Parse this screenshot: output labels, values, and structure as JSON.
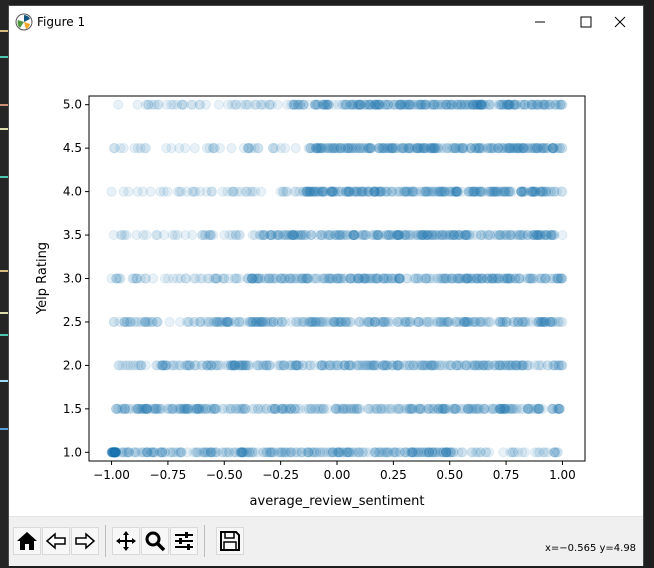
{
  "window": {
    "title": "Figure 1"
  },
  "toolbar": {
    "buttons": [
      "home-icon",
      "back-icon",
      "forward-icon",
      "pan-icon",
      "zoom-icon",
      "configure-subplots-icon",
      "save-icon"
    ],
    "coords_text": "x=−0.565 y=4.98"
  },
  "colors": {
    "marker": "#1f77b4",
    "marker_alpha": 0.1,
    "background": "#ffffff",
    "toolbar": "#f0f0f0"
  },
  "chart_data": {
    "type": "scatter",
    "title": "",
    "xlabel": "average_review_sentiment",
    "ylabel": "Yelp Rating",
    "xlim": [
      -1.1,
      1.1
    ],
    "ylim": [
      0.9,
      5.1
    ],
    "xticks": [
      -1.0,
      -0.75,
      -0.5,
      -0.25,
      0.0,
      0.25,
      0.5,
      0.75,
      1.0
    ],
    "xtick_labels": [
      "−1.00",
      "−0.75",
      "−0.50",
      "−0.25",
      "0.00",
      "0.25",
      "0.50",
      "0.75",
      "1.00"
    ],
    "yticks": [
      1.0,
      1.5,
      2.0,
      2.5,
      3.0,
      3.5,
      4.0,
      4.5,
      5.0
    ],
    "ytick_labels": [
      "1.0",
      "1.5",
      "2.0",
      "2.5",
      "3.0",
      "3.5",
      "4.0",
      "4.5",
      "5.0"
    ],
    "grid": false,
    "series": [
      {
        "y": 5.0,
        "x_range": [
          -0.97,
          1.0
        ],
        "dense_from": -0.2
      },
      {
        "y": 4.5,
        "x_range": [
          -0.99,
          1.0
        ],
        "dense_from": -0.1
      },
      {
        "y": 4.0,
        "x_range": [
          -1.0,
          1.0
        ],
        "dense_from": -0.15
      },
      {
        "y": 3.5,
        "x_range": [
          -0.99,
          1.0
        ],
        "dense_from": -0.3
      },
      {
        "y": 3.0,
        "x_range": [
          -1.0,
          1.0
        ],
        "dense_from": -0.4
      },
      {
        "y": 2.5,
        "x_range": [
          -0.99,
          1.0
        ],
        "dense_from": -0.55
      },
      {
        "y": 2.0,
        "x_range": [
          -0.97,
          1.0
        ],
        "dense_from": -0.6
      },
      {
        "y": 1.5,
        "x_range": [
          -0.98,
          0.99
        ],
        "dense_from": -0.8,
        "dense_to": 0.8
      },
      {
        "y": 1.0,
        "x_range": [
          -1.0,
          0.98
        ],
        "dense_from": -0.98,
        "dense_to": 0.55
      }
    ]
  }
}
